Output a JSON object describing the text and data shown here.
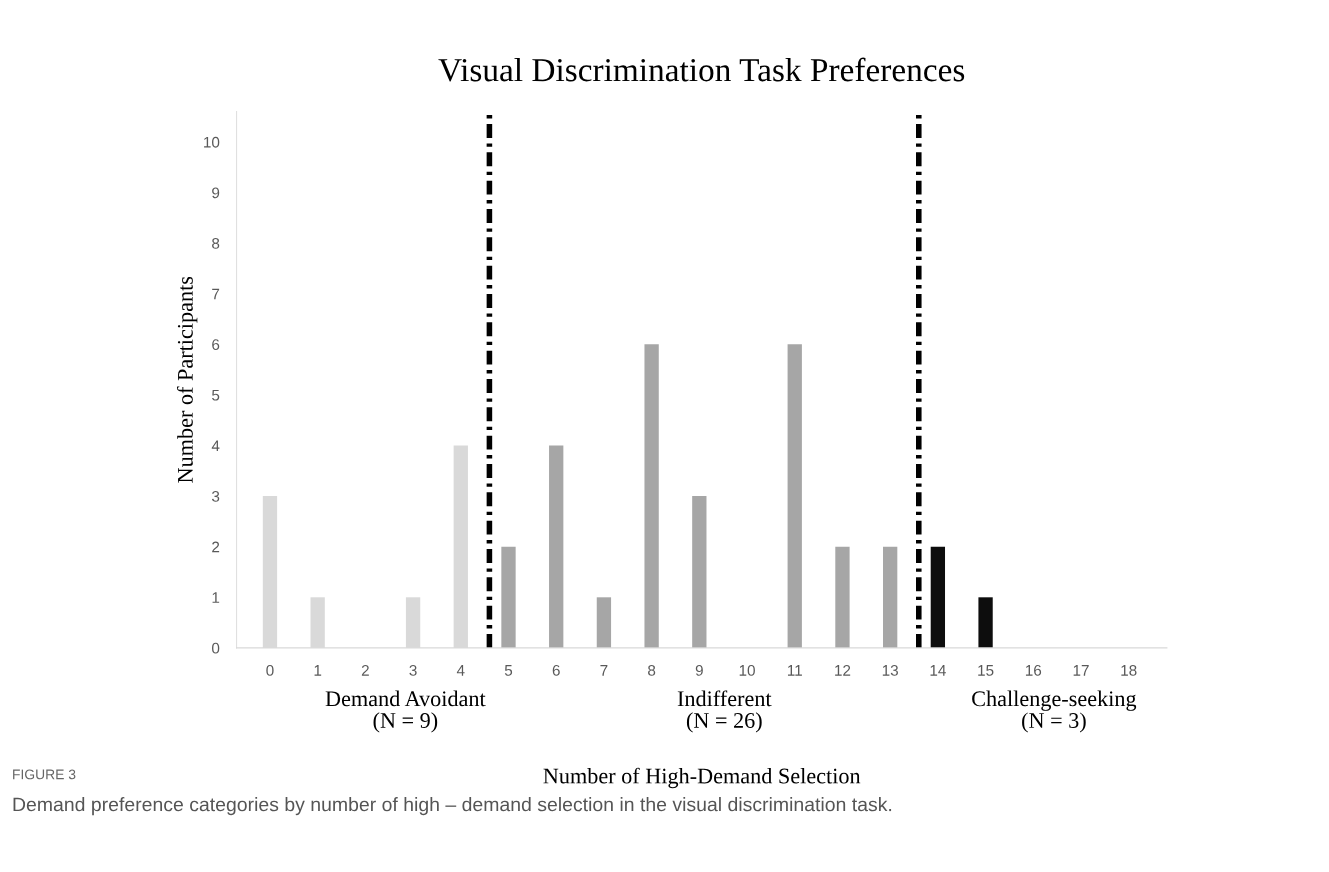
{
  "chart_data": {
    "type": "bar",
    "title": "Visual Discrimination Task Preferences",
    "xlabel": "Number of High-Demand Selection",
    "ylabel": "Number of Participants",
    "x": [
      0,
      1,
      2,
      3,
      4,
      5,
      6,
      7,
      8,
      9,
      10,
      11,
      12,
      13,
      14,
      15,
      16,
      17,
      18
    ],
    "values": [
      3,
      1,
      0,
      1,
      4,
      2,
      4,
      1,
      6,
      3,
      0,
      6,
      2,
      2,
      2,
      1,
      0,
      0,
      0
    ],
    "colors": [
      "#d9d9d9",
      "#d9d9d9",
      "#d9d9d9",
      "#d9d9d9",
      "#d9d9d9",
      "#a6a6a6",
      "#a6a6a6",
      "#a6a6a6",
      "#a6a6a6",
      "#a6a6a6",
      "#a6a6a6",
      "#a6a6a6",
      "#a6a6a6",
      "#a6a6a6",
      "#0d0d0d",
      "#0d0d0d",
      "#0d0d0d",
      "#0d0d0d",
      "#0d0d0d"
    ],
    "xlim": [
      -0.7,
      18.8
    ],
    "ylim": [
      0,
      10.6
    ],
    "xticks": [
      0,
      1,
      2,
      3,
      4,
      5,
      6,
      7,
      8,
      9,
      10,
      11,
      12,
      13,
      14,
      15,
      16,
      17,
      18
    ],
    "yticks": [
      0,
      1,
      2,
      3,
      4,
      5,
      6,
      7,
      8,
      9,
      10
    ],
    "ref_lines": [
      {
        "axis": "x",
        "value": 4.6,
        "color": "#000000",
        "line_style": "dashed"
      },
      {
        "axis": "x",
        "value": 13.6,
        "color": "#000000",
        "line_style": "dashed"
      }
    ],
    "annotations": [
      "Demand Avoidant\n(N = 9)",
      "Indifferent\n(N = 26)",
      "Challenge-seeking\n(N = 3)",
      "FIGURE 3",
      "Demand preference categories by number of high – demand selection in the visual discrimination task."
    ],
    "grid": false,
    "legend": false
  }
}
